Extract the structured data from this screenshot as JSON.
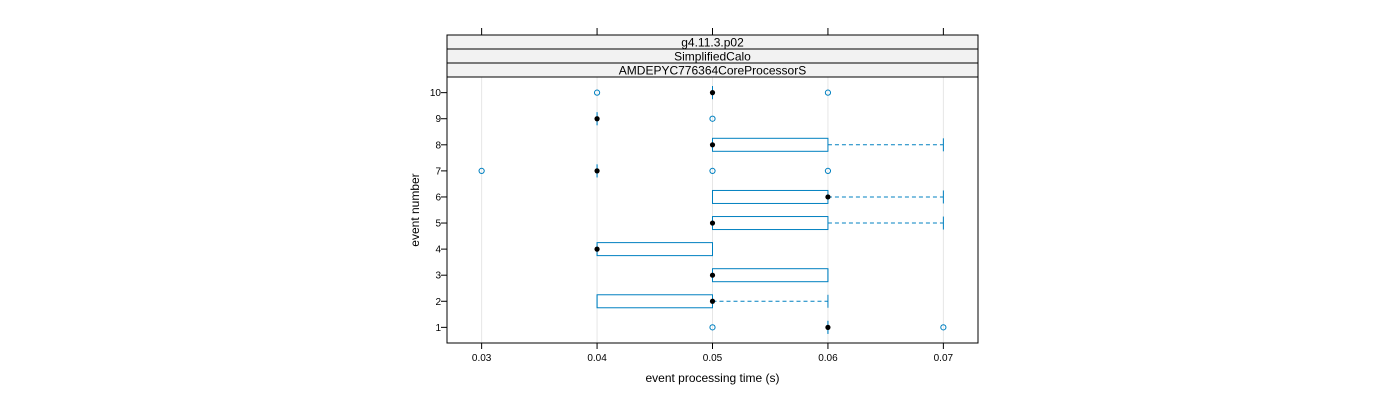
{
  "chart_data": {
    "type": "box",
    "orientation": "horizontal",
    "strips": [
      "g4.11.3.p02",
      "SimplifiedCalo",
      "AMDEPYC776364CoreProcessorS"
    ],
    "xlabel": "event processing time (s)",
    "ylabel": "event number",
    "xlim": [
      0.027,
      0.073
    ],
    "ylim": [
      0.4,
      10.6
    ],
    "x_ticks": [
      "0.03",
      "0.04",
      "0.05",
      "0.06",
      "0.07"
    ],
    "y_ticks": [
      "1",
      "2",
      "3",
      "4",
      "5",
      "6",
      "7",
      "8",
      "9",
      "10"
    ],
    "grid": "vertical",
    "box_color": "#0080c0",
    "median_color": "#000000",
    "boxes": [
      {
        "event": "1",
        "min": 0.06,
        "q1": 0.06,
        "median": 0.06,
        "q3": 0.06,
        "max": 0.06,
        "outliers": [
          0.05,
          0.07
        ]
      },
      {
        "event": "2",
        "min": 0.04,
        "q1": 0.04,
        "median": 0.05,
        "q3": 0.05,
        "max": 0.06,
        "outliers": []
      },
      {
        "event": "3",
        "min": 0.05,
        "q1": 0.05,
        "median": 0.05,
        "q3": 0.06,
        "max": 0.06,
        "outliers": []
      },
      {
        "event": "4",
        "min": 0.04,
        "q1": 0.04,
        "median": 0.04,
        "q3": 0.05,
        "max": 0.05,
        "outliers": []
      },
      {
        "event": "5",
        "min": 0.05,
        "q1": 0.05,
        "median": 0.05,
        "q3": 0.06,
        "max": 0.07,
        "outliers": []
      },
      {
        "event": "6",
        "min": 0.05,
        "q1": 0.05,
        "median": 0.06,
        "q3": 0.06,
        "max": 0.07,
        "outliers": []
      },
      {
        "event": "7",
        "min": 0.04,
        "q1": 0.04,
        "median": 0.04,
        "q3": 0.04,
        "max": 0.04,
        "outliers": [
          0.03,
          0.05,
          0.06
        ]
      },
      {
        "event": "8",
        "min": 0.05,
        "q1": 0.05,
        "median": 0.05,
        "q3": 0.06,
        "max": 0.07,
        "outliers": []
      },
      {
        "event": "9",
        "min": 0.04,
        "q1": 0.04,
        "median": 0.04,
        "q3": 0.04,
        "max": 0.04,
        "outliers": [
          0.05
        ]
      },
      {
        "event": "10",
        "min": 0.05,
        "q1": 0.05,
        "median": 0.05,
        "q3": 0.05,
        "max": 0.05,
        "outliers": [
          0.04,
          0.06
        ]
      }
    ]
  }
}
